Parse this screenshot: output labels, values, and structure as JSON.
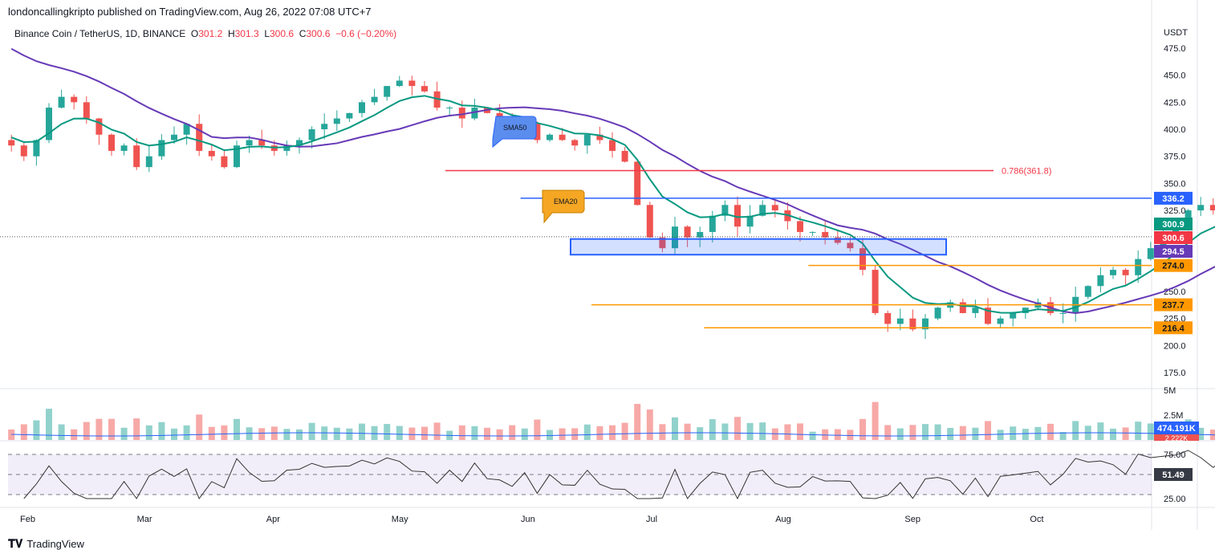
{
  "header": {
    "published": "londoncallingkripto published on TradingView.com, Aug 26, 2022 07:08 UTC+7",
    "symbol": "Binance Coin / TetherUS, 1D, BINANCE",
    "o_label": "O",
    "o": "301.2",
    "h_label": "H",
    "h": "301.3",
    "l_label": "L",
    "l": "300.6",
    "c_label": "C",
    "c": "300.6",
    "change": "−0.6 (−0.20%)"
  },
  "footer": {
    "brand": "TradingView"
  },
  "colors": {
    "up": "#26a69a",
    "down": "#ef5350",
    "sma": "#673ab7",
    "ema": "#089981",
    "red": "#f23645",
    "blue": "#2962ff",
    "orange": "#ff9800"
  },
  "chart_data": {
    "type": "candlestick",
    "currency": "USDT",
    "ylim": [
      160,
      485
    ],
    "y_ticks": [
      "475.0",
      "450.0",
      "425.0",
      "400.0",
      "375.0",
      "350.0",
      "325.0",
      "250.0",
      "225.0",
      "200.0",
      "175.0"
    ],
    "x_ticks": [
      "Feb",
      "Mar",
      "Apr",
      "May",
      "Jun",
      "Jul",
      "Aug",
      "Sep",
      "Oct"
    ],
    "start_day_offset": -4,
    "interval_days": 3,
    "closes": [
      385,
      375,
      390,
      420,
      430,
      425,
      410,
      395,
      380,
      385,
      365,
      375,
      390,
      395,
      405,
      380,
      375,
      365,
      385,
      390,
      385,
      380,
      385,
      390,
      400,
      405,
      410,
      415,
      425,
      430,
      440,
      445,
      440,
      435,
      420,
      420,
      410,
      420,
      415,
      410,
      400,
      405,
      390,
      395,
      390,
      385,
      395,
      390,
      380,
      370,
      330,
      300,
      290,
      310,
      300,
      305,
      320,
      330,
      310,
      320,
      330,
      325,
      315,
      305,
      305,
      300,
      295,
      290,
      270,
      230,
      220,
      225,
      215,
      225,
      235,
      240,
      230,
      235,
      220,
      225,
      230,
      235,
      240,
      230,
      230,
      245,
      255,
      265,
      270,
      265,
      280,
      290,
      300,
      310,
      325,
      330,
      325,
      330,
      325,
      300,
      280,
      290,
      300,
      301
    ],
    "levels": [
      {
        "name": "fib-0786",
        "price": 361.8,
        "label": "0.786(361.8)",
        "color": "#f23645",
        "from_day": 100
      },
      {
        "name": "resistance",
        "price": 336.2,
        "label": "336.2",
        "color": "#2962ff",
        "from_day": 118
      },
      {
        "name": "support-274",
        "price": 274.0,
        "label": "274.0",
        "color": "#ff9800",
        "from_day": 187
      },
      {
        "name": "support-237",
        "price": 237.7,
        "label": "237.7",
        "color": "#ff9800",
        "from_day": 135
      },
      {
        "name": "support-216",
        "price": 216.4,
        "label": "216.4",
        "color": "#ff9800",
        "from_day": 162
      }
    ],
    "zone": {
      "top": 298.5,
      "bottom": 284,
      "from_day": 130,
      "to_day": 220
    },
    "price_labels": [
      {
        "label": "300.9",
        "price": 300.9,
        "color": "#089981"
      },
      {
        "label": "300.6",
        "price": 300.6,
        "color": "#f23645"
      },
      {
        "label": "294.5",
        "price": 294.5,
        "color": "#673ab7"
      }
    ],
    "annotations": [
      {
        "text": "SMA50",
        "color": "#5b8def"
      },
      {
        "text": "EMA20",
        "color": "#f5a623"
      }
    ],
    "volume": {
      "ticks": [
        "5M",
        "2.5M"
      ],
      "ma_label": "474.191K",
      "last_label": "2.222K"
    },
    "rsi": {
      "ticks": [
        "75.00",
        "25.00"
      ],
      "value": "51.49"
    }
  }
}
